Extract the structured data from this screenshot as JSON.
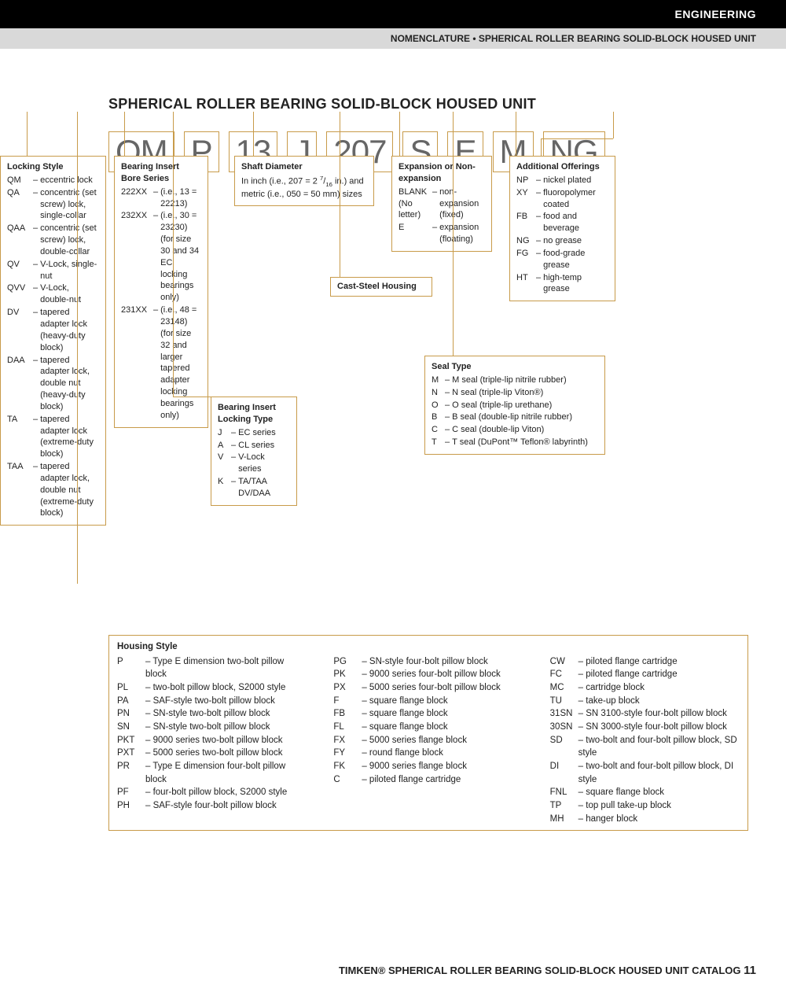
{
  "header": {
    "engineering": "ENGINEERING",
    "subtitle": "NOMENCLATURE • SPHERICAL ROLLER BEARING SOLID-BLOCK HOUSED UNIT"
  },
  "title": "SPHERICAL ROLLER BEARING SOLID-BLOCK HOUSED UNIT",
  "codes": [
    "QM",
    "P",
    "13",
    "J",
    "207",
    "S",
    "E",
    "M",
    "NG"
  ],
  "locking_style": {
    "title": "Locking Style",
    "items": [
      {
        "c": "QM",
        "d": "eccentric lock"
      },
      {
        "c": "QA",
        "d": "concentric (set screw) lock, single-collar"
      },
      {
        "c": "QAA",
        "d": "concentric (set screw) lock, double-collar"
      },
      {
        "c": "QV",
        "d": "V-Lock, single-nut"
      },
      {
        "c": "QVV",
        "d": "V-Lock, double-nut"
      },
      {
        "c": "DV",
        "d": "tapered adapter lock (heavy-duty block)"
      },
      {
        "c": "DAA",
        "d": "tapered adapter lock, double nut (heavy-duty block)"
      },
      {
        "c": "TA",
        "d": "tapered adapter lock (extreme-duty block)"
      },
      {
        "c": "TAA",
        "d": "tapered adapter lock, double nut (extreme-duty block)"
      }
    ]
  },
  "bore_series": {
    "title": "Bearing Insert Bore Series",
    "items": [
      {
        "c": "222XX",
        "d": "(i.e., 13 = 22213)"
      },
      {
        "c": "232XX",
        "d": "(i.e., 30 = 23230) (for size 30 and 34 EC locking bearings only)"
      },
      {
        "c": "231XX",
        "d": "(i.e., 48 = 23148) (for size 32 and larger tapered adapter locking bearings only)"
      }
    ]
  },
  "shaft": {
    "title": "Shaft Diameter",
    "text": "In inch (i.e., 207 = 2 7/16 in.) and metric (i.e., 050 = 50 mm) sizes"
  },
  "expansion": {
    "title": "Expansion or Non-expansion",
    "items": [
      {
        "c": "BLANK (No letter)",
        "d": "non-expansion (fixed)"
      },
      {
        "c": "E",
        "d": "expansion (floating)"
      }
    ]
  },
  "cast_steel": "Cast-Steel Housing",
  "additional": {
    "title": "Additional Offerings",
    "items": [
      {
        "c": "NP",
        "d": "nickel plated"
      },
      {
        "c": "XY",
        "d": "fluoropolymer coated"
      },
      {
        "c": "FB",
        "d": "food and beverage"
      },
      {
        "c": "NG",
        "d": "no grease"
      },
      {
        "c": "FG",
        "d": "food-grade grease"
      },
      {
        "c": "HT",
        "d": "high-temp grease"
      }
    ]
  },
  "locking_type": {
    "title": "Bearing Insert Locking Type",
    "items": [
      {
        "c": "J",
        "d": "EC series"
      },
      {
        "c": "A",
        "d": "CL series"
      },
      {
        "c": "V",
        "d": "V-Lock series"
      },
      {
        "c": "K",
        "d": "TA/TAA DV/DAA"
      }
    ]
  },
  "seal": {
    "title": "Seal Type",
    "items": [
      {
        "c": "M",
        "d": "M seal (triple-lip nitrile rubber)"
      },
      {
        "c": "N",
        "d": "N seal (triple-lip Viton®)"
      },
      {
        "c": "O",
        "d": "O seal (triple-lip urethane)"
      },
      {
        "c": "B",
        "d": "B seal (double-lip nitrile rubber)"
      },
      {
        "c": "C",
        "d": "C seal (double-lip Viton)"
      },
      {
        "c": "T",
        "d": "T seal (DuPont™ Teflon® labyrinth)"
      }
    ]
  },
  "housing": {
    "title": "Housing Style",
    "col1": [
      {
        "c": "P",
        "d": "Type E dimension two-bolt pillow block"
      },
      {
        "c": "PL",
        "d": "two-bolt pillow block, S2000 style"
      },
      {
        "c": "PA",
        "d": "SAF-style two-bolt pillow block"
      },
      {
        "c": "PN",
        "d": "SN-style two-bolt pillow block"
      },
      {
        "c": "SN",
        "d": "SN-style two-bolt pillow block"
      },
      {
        "c": "PKT",
        "d": "9000 series two-bolt pillow block"
      },
      {
        "c": "PXT",
        "d": "5000 series two-bolt pillow block"
      },
      {
        "c": "PR",
        "d": "Type E dimension four-bolt pillow block"
      },
      {
        "c": "PF",
        "d": "four-bolt pillow block, S2000 style"
      },
      {
        "c": "PH",
        "d": "SAF-style four-bolt pillow block"
      }
    ],
    "col2": [
      {
        "c": "PG",
        "d": "SN-style four-bolt pillow block"
      },
      {
        "c": "PK",
        "d": "9000 series four-bolt pillow block"
      },
      {
        "c": "PX",
        "d": "5000 series four-bolt pillow block"
      },
      {
        "c": "F",
        "d": "square flange block"
      },
      {
        "c": "FB",
        "d": "square flange block"
      },
      {
        "c": "FL",
        "d": "square flange block"
      },
      {
        "c": "FX",
        "d": "5000 series flange block"
      },
      {
        "c": "FY",
        "d": "round flange block"
      },
      {
        "c": "FK",
        "d": "9000 series flange block"
      },
      {
        "c": "C",
        "d": "piloted flange cartridge"
      }
    ],
    "col3": [
      {
        "c": "CW",
        "d": "piloted flange cartridge"
      },
      {
        "c": "FC",
        "d": "piloted flange cartridge"
      },
      {
        "c": "MC",
        "d": "cartridge block"
      },
      {
        "c": "TU",
        "d": "take-up block"
      },
      {
        "c": "31SN",
        "d": "SN 3100-style four-bolt pillow block"
      },
      {
        "c": "30SN",
        "d": "SN 3000-style four-bolt pillow block"
      },
      {
        "c": "SD",
        "d": "two-bolt and four-bolt pillow block, SD style"
      },
      {
        "c": "DI",
        "d": "two-bolt and four-bolt pillow block, DI style"
      },
      {
        "c": "FNL",
        "d": "square flange block"
      },
      {
        "c": "TP",
        "d": "top pull take-up block"
      },
      {
        "c": "MH",
        "d": "hanger block"
      }
    ]
  },
  "footer": {
    "text": "TIMKEN® SPHERICAL ROLLER BEARING SOLID-BLOCK HOUSED UNIT CATALOG",
    "page": "11"
  }
}
